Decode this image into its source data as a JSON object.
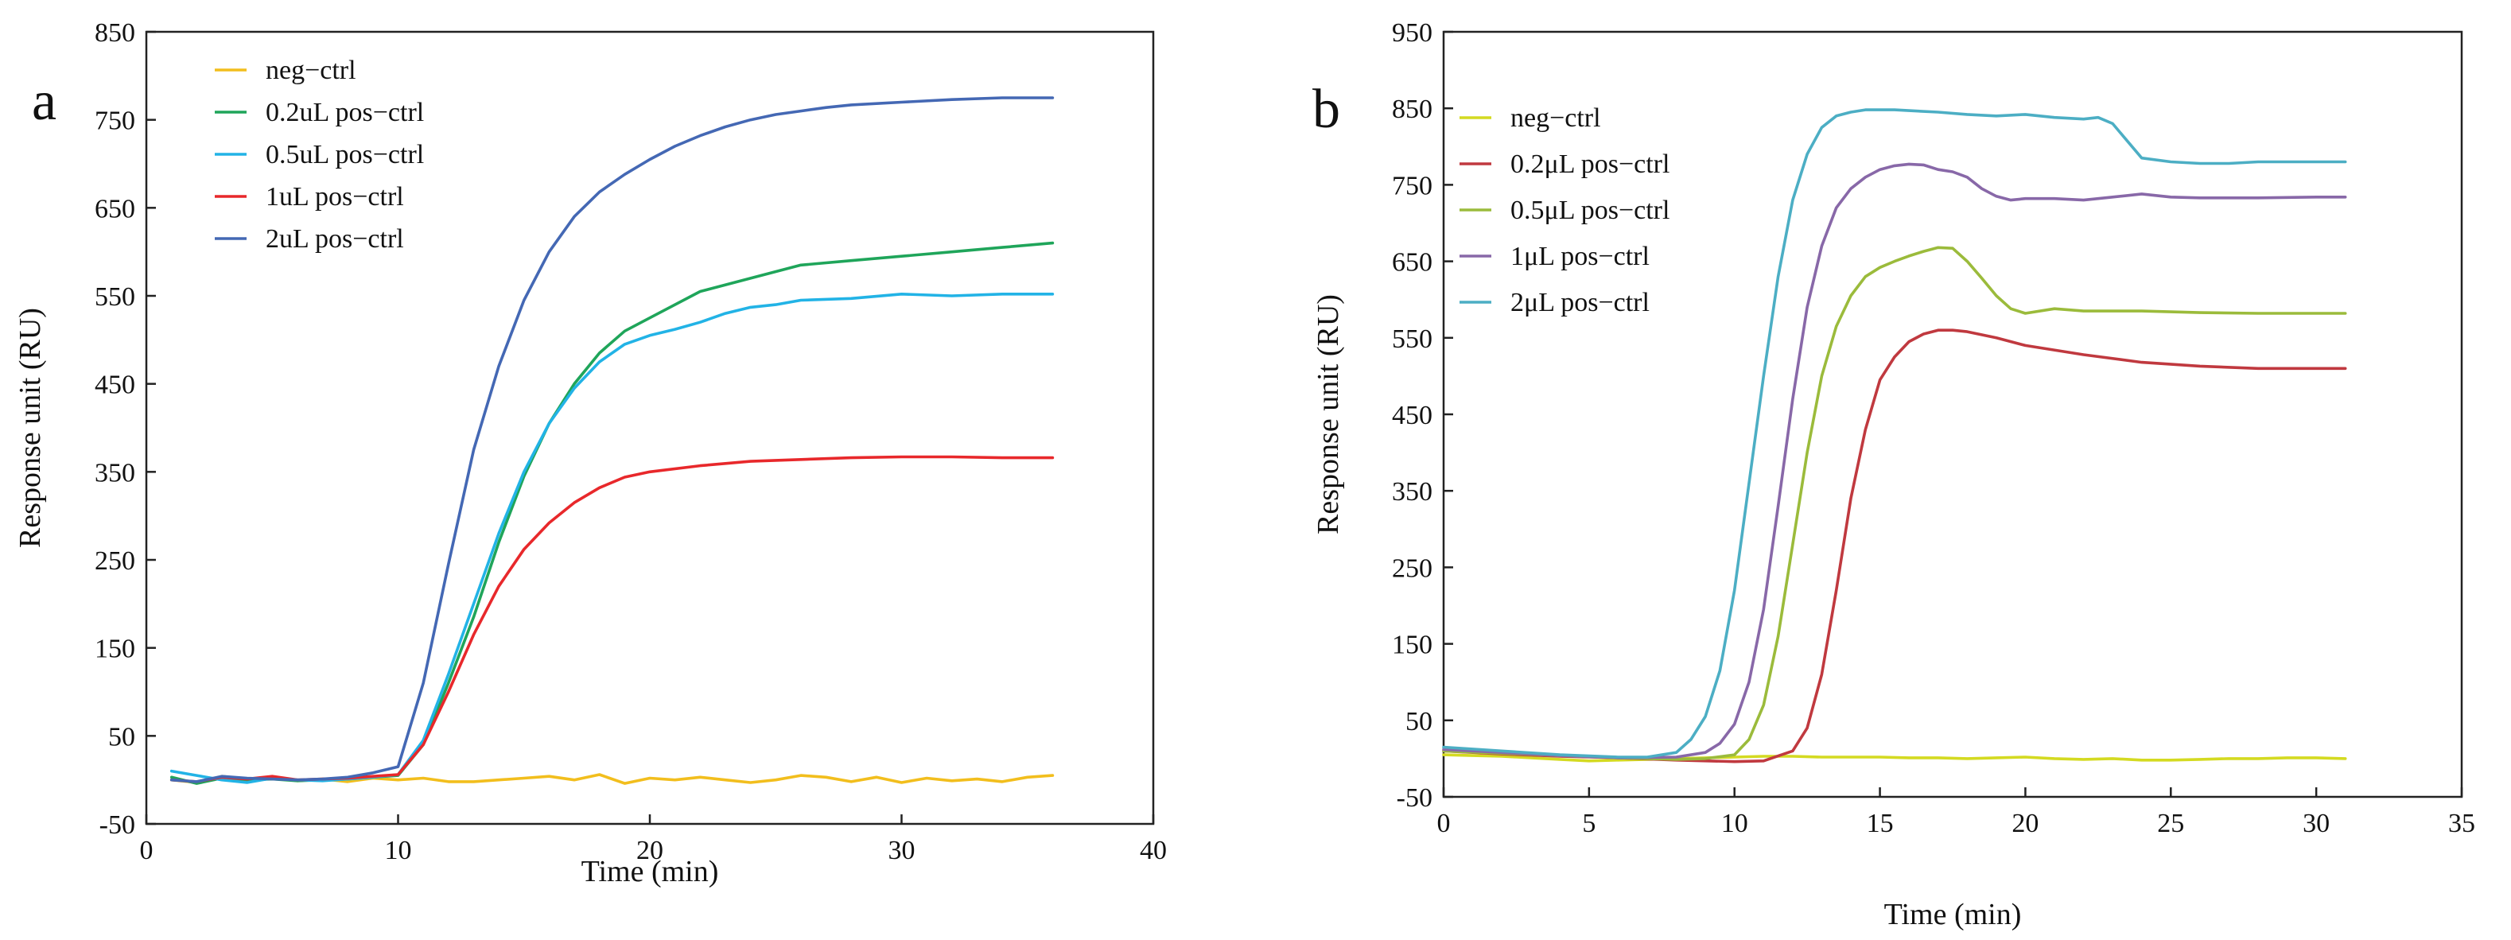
{
  "chart_data": [
    {
      "type": "line",
      "panel_label": "a",
      "xlabel": "Time (min)",
      "ylabel": "Response unit (RU)",
      "xlim": [
        0,
        40
      ],
      "ylim": [
        -50,
        850
      ],
      "xticks": [
        0,
        10,
        20,
        30,
        40
      ],
      "yticks": [
        -50,
        50,
        150,
        250,
        350,
        450,
        550,
        650,
        750,
        850
      ],
      "legend_position": "top-left",
      "series": [
        {
          "name": "neg−ctrl",
          "color": "#F2BE1D",
          "x": [
            1,
            2,
            3,
            4,
            5,
            6,
            7,
            8,
            9,
            10,
            11,
            12,
            13,
            14,
            15,
            16,
            17,
            18,
            19,
            20,
            21,
            22,
            23,
            24,
            25,
            26,
            27,
            28,
            29,
            30,
            31,
            32,
            33,
            34,
            35,
            36
          ],
          "y": [
            0,
            -3,
            4,
            1,
            3,
            -1,
            1,
            -2,
            2,
            0,
            2,
            -2,
            -2,
            0,
            2,
            4,
            0,
            6,
            -4,
            2,
            0,
            3,
            0,
            -3,
            0,
            5,
            3,
            -2,
            3,
            -3,
            2,
            -1,
            1,
            -2,
            3,
            5
          ]
        },
        {
          "name": "0.2uL pos−ctrl",
          "color": "#1FA55A",
          "x": [
            1,
            2,
            3,
            4,
            5,
            6,
            7,
            8,
            9,
            10,
            11,
            12,
            13,
            14,
            15,
            16,
            17,
            18,
            19,
            20,
            22,
            24,
            26,
            28,
            30,
            32,
            34,
            36
          ],
          "y": [
            3,
            -4,
            2,
            0,
            1,
            -1,
            0,
            1,
            3,
            5,
            40,
            110,
            185,
            270,
            345,
            405,
            450,
            485,
            510,
            525,
            555,
            570,
            585,
            590,
            595,
            600,
            605,
            610
          ]
        },
        {
          "name": "0.5uL pos−ctrl",
          "color": "#22B3E6",
          "x": [
            1,
            2,
            3,
            4,
            5,
            6,
            7,
            8,
            9,
            10,
            11,
            12,
            13,
            14,
            15,
            16,
            17,
            18,
            19,
            20,
            21,
            22,
            23,
            24,
            25,
            26,
            28,
            30,
            32,
            34,
            36
          ],
          "y": [
            10,
            5,
            0,
            -3,
            2,
            0,
            -1,
            1,
            3,
            6,
            45,
            120,
            200,
            280,
            350,
            405,
            445,
            475,
            495,
            505,
            512,
            520,
            530,
            537,
            540,
            545,
            547,
            552,
            550,
            552,
            552
          ]
        },
        {
          "name": "1uL  pos−ctrl",
          "color": "#E8282B",
          "x": [
            1,
            2,
            3,
            4,
            5,
            6,
            7,
            8,
            9,
            10,
            11,
            12,
            13,
            14,
            15,
            16,
            17,
            18,
            19,
            20,
            22,
            24,
            26,
            28,
            30,
            32,
            34,
            36
          ],
          "y": [
            0,
            -2,
            3,
            1,
            4,
            0,
            1,
            2,
            4,
            6,
            40,
            100,
            165,
            220,
            262,
            292,
            315,
            332,
            344,
            350,
            357,
            362,
            364,
            366,
            367,
            367,
            366,
            366
          ]
        },
        {
          "name": "2uL  pos−ctrl",
          "color": "#4468B4",
          "x": [
            1,
            2,
            3,
            4,
            5,
            6,
            7,
            8,
            9,
            10,
            11,
            12,
            13,
            14,
            15,
            16,
            17,
            18,
            19,
            20,
            21,
            22,
            23,
            24,
            25,
            26,
            27,
            28,
            30,
            32,
            34,
            36
          ],
          "y": [
            0,
            -2,
            4,
            2,
            1,
            0,
            1,
            3,
            8,
            15,
            110,
            245,
            375,
            470,
            545,
            600,
            640,
            668,
            688,
            705,
            720,
            732,
            742,
            750,
            756,
            760,
            764,
            767,
            770,
            773,
            775,
            775
          ]
        }
      ]
    },
    {
      "type": "line",
      "panel_label": "b",
      "xlabel": "Time (min)",
      "ylabel": "Response unit (RU)",
      "xlim": [
        0,
        35
      ],
      "ylim": [
        -50,
        950
      ],
      "xticks": [
        0,
        5,
        10,
        15,
        20,
        25,
        30,
        35
      ],
      "yticks": [
        -50,
        50,
        150,
        250,
        350,
        450,
        550,
        650,
        750,
        850,
        950
      ],
      "legend_position": "top-left",
      "series": [
        {
          "name": "neg−ctrl",
          "color": "#D4DA21",
          "x": [
            0,
            1,
            2,
            3,
            4,
            5,
            6,
            7,
            8,
            9,
            10,
            11,
            12,
            13,
            14,
            15,
            16,
            17,
            18,
            19,
            20,
            21,
            22,
            23,
            24,
            25,
            26,
            27,
            28,
            29,
            30,
            31
          ],
          "y": [
            5,
            4,
            3,
            1,
            -1,
            -3,
            -2,
            -1,
            0,
            1,
            2,
            3,
            3,
            2,
            2,
            2,
            1,
            1,
            0,
            1,
            2,
            0,
            -1,
            0,
            -2,
            -2,
            -1,
            0,
            0,
            1,
            1,
            0
          ]
        },
        {
          "name": "0.2μL pos−ctrl",
          "color": "#C0393F",
          "x": [
            0,
            2,
            4,
            6,
            8,
            10,
            11,
            12,
            12.5,
            13,
            13.5,
            14,
            14.5,
            15,
            15.5,
            16,
            16.5,
            17,
            17.5,
            18,
            19,
            20,
            22,
            24,
            26,
            28,
            30,
            31
          ],
          "y": [
            10,
            6,
            3,
            1,
            -2,
            -4,
            -3,
            10,
            40,
            110,
            220,
            340,
            430,
            495,
            525,
            545,
            555,
            560,
            560,
            558,
            550,
            540,
            528,
            518,
            513,
            510,
            510,
            510
          ]
        },
        {
          "name": "0.5μL pos−ctrl",
          "color": "#9BBB3B",
          "x": [
            0,
            2,
            4,
            6,
            8,
            9,
            10,
            10.5,
            11,
            11.5,
            12,
            12.5,
            13,
            13.5,
            14,
            14.5,
            15,
            15.5,
            16,
            16.5,
            17,
            17.5,
            18,
            18.5,
            19,
            19.5,
            20,
            21,
            22,
            24,
            26,
            28,
            30,
            31
          ],
          "y": [
            10,
            7,
            4,
            1,
            -1,
            0,
            5,
            25,
            70,
            160,
            280,
            400,
            500,
            565,
            605,
            630,
            642,
            650,
            657,
            663,
            668,
            667,
            650,
            628,
            605,
            588,
            582,
            588,
            585,
            585,
            583,
            582,
            582,
            582
          ]
        },
        {
          "name": "1μL pos−ctrl",
          "color": "#8868A8",
          "x": [
            0,
            2,
            4,
            6,
            8,
            9,
            9.5,
            10,
            10.5,
            11,
            11.5,
            12,
            12.5,
            13,
            13.5,
            14,
            14.5,
            15,
            15.5,
            16,
            16.5,
            17,
            17.5,
            18,
            18.5,
            19,
            19.5,
            20,
            21,
            22,
            23,
            24,
            25,
            26,
            28,
            30,
            31
          ],
          "y": [
            12,
            8,
            4,
            1,
            2,
            8,
            20,
            45,
            100,
            195,
            330,
            470,
            590,
            670,
            720,
            745,
            760,
            770,
            775,
            777,
            776,
            770,
            767,
            760,
            745,
            735,
            730,
            732,
            732,
            730,
            734,
            738,
            734,
            733,
            733,
            734,
            734
          ]
        },
        {
          "name": "2μL pos−ctrl",
          "color": "#4CAEC4",
          "x": [
            0,
            2,
            4,
            6,
            7,
            8,
            8.5,
            9,
            9.5,
            10,
            10.5,
            11,
            11.5,
            12,
            12.5,
            13,
            13.5,
            14,
            14.5,
            15,
            15.5,
            16,
            17,
            18,
            19,
            20,
            21,
            22,
            22.5,
            23,
            24,
            25,
            26,
            27,
            28,
            30,
            31
          ],
          "y": [
            15,
            10,
            5,
            2,
            2,
            8,
            25,
            55,
            115,
            220,
            360,
            500,
            630,
            730,
            790,
            825,
            840,
            845,
            848,
            848,
            848,
            847,
            845,
            842,
            840,
            842,
            838,
            836,
            838,
            830,
            785,
            780,
            778,
            778,
            780,
            780,
            780
          ]
        }
      ]
    }
  ]
}
